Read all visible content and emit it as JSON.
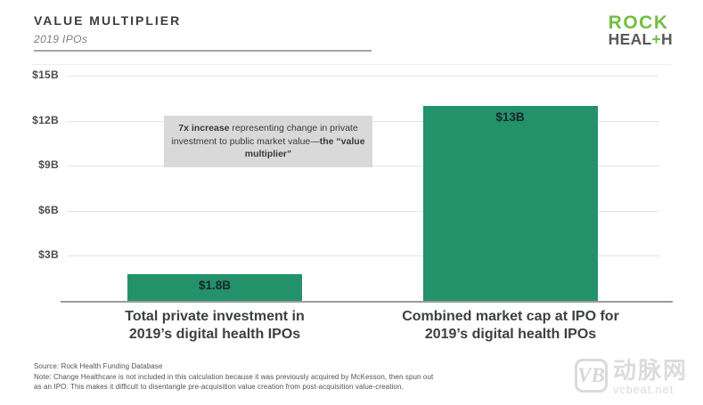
{
  "header": {
    "title": "VALUE MULTIPLIER",
    "subtitle": "2019 IPOs"
  },
  "logo": {
    "line1": "ROCK",
    "line2_pre": "HEAL",
    "line2_plus": "+",
    "line2_post": "H"
  },
  "chart_data": {
    "type": "bar",
    "title": "VALUE MULTIPLIER",
    "subtitle": "2019 IPOs",
    "categories": [
      "Total private investment in 2019’s digital health IPOs",
      "Combined market cap at IPO for 2019’s digital health IPOs"
    ],
    "values": [
      1.8,
      13
    ],
    "bar_labels": [
      "$1.8B",
      "$13B"
    ],
    "xlabel": "",
    "ylabel": "",
    "ylim": [
      0,
      15
    ],
    "yticks": [
      3,
      6,
      9,
      12,
      15
    ],
    "ytick_labels": [
      "$3B",
      "$6B",
      "$9B",
      "$12B",
      "$15B"
    ],
    "grid": true,
    "legend": false,
    "bar_color": "#23926a",
    "annotation": "7x increase representing change in private investment to public market value—the “value multiplier”"
  },
  "annotation": {
    "bold1": "7x increase",
    "mid": " representing change in private investment to public market value—",
    "bold2": "the “value multiplier”"
  },
  "category_labels": [
    {
      "line1": "Total private investment in",
      "line2": "2019’s digital health IPOs"
    },
    {
      "line1": "Combined market cap at IPO for",
      "line2": "2019’s digital health IPOs"
    }
  ],
  "footer": {
    "line1": "Source: Rock Health Funding Database",
    "line2": "Note: Change Healthcare is not included in this calculation because it was previously acquired by McKesson, then spun out",
    "line3": "as an IPO. This makes it difficult to disentangle pre-acquisition value creation from post-acquisition value-creation."
  },
  "watermark": {
    "monogram": "VB",
    "cn": "动脉网",
    "site": "vcbeat.net"
  },
  "colors": {
    "bar_green": "#23926a",
    "logo_green": "#72bf44",
    "logo_gray": "#58595b",
    "annotation_bg": "#d9d9d9",
    "grid_gray": "#e3e3e3",
    "axis_gray": "#9b9b9b"
  }
}
